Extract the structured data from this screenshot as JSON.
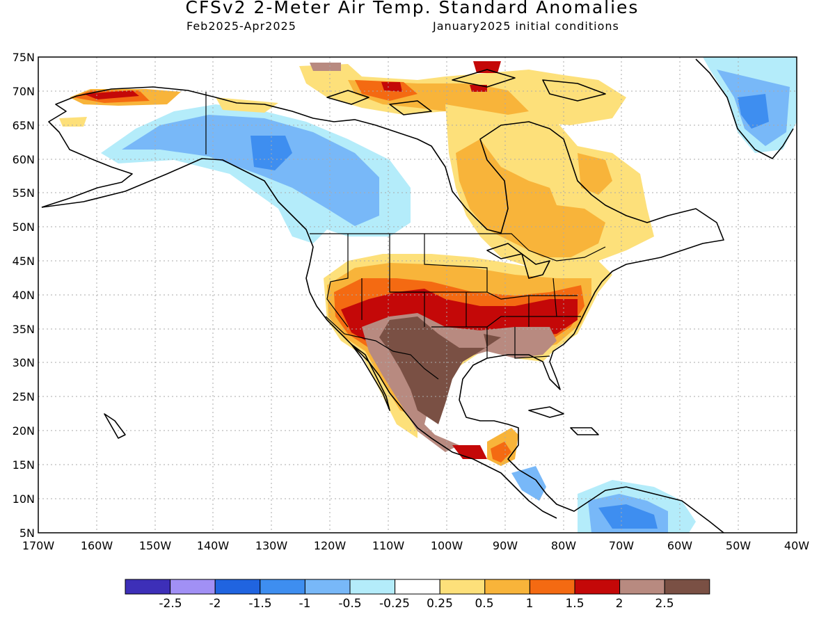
{
  "title": "CFSv2 2-Meter Air Temp. Standard Anomalies",
  "subtitle_left": "Feb2025-Apr2025",
  "subtitle_right": "January2025 initial conditions",
  "lat_ticks": [
    "75N",
    "70N",
    "65N",
    "60N",
    "55N",
    "50N",
    "45N",
    "40N",
    "35N",
    "30N",
    "25N",
    "20N",
    "15N",
    "10N",
    "5N"
  ],
  "lon_ticks": [
    "170W",
    "160W",
    "150W",
    "140W",
    "130W",
    "120W",
    "110W",
    "100W",
    "90W",
    "80W",
    "70W",
    "60W",
    "50W",
    "40W"
  ],
  "colorbar": {
    "colors": [
      "#3d2fb8",
      "#a190f5",
      "#2064e0",
      "#3e8ef0",
      "#78b8f8",
      "#b4ecfa",
      "#ffffff",
      "#fde07a",
      "#f8b43a",
      "#f46a12",
      "#c40808",
      "#b88a80",
      "#7a5044"
    ],
    "labels": [
      "-2.5",
      "-2",
      "-1.5",
      "-1",
      "-0.5",
      "-0.25",
      "0.25",
      "0.5",
      "1",
      "1.5",
      "2",
      "2.5"
    ]
  }
}
